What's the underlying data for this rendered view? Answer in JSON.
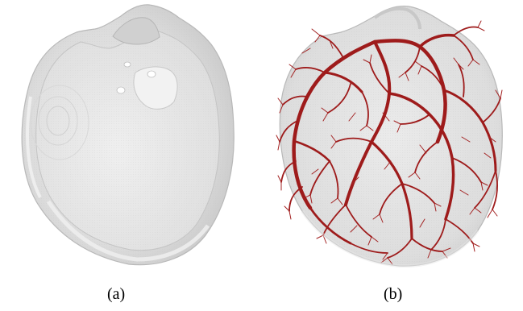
{
  "figure": {
    "panels": [
      {
        "label": "(a)"
      },
      {
        "label": "(b)"
      }
    ]
  },
  "colors": {
    "shell": "#d6d6d6",
    "shell_edge": "#b8b8b8",
    "inner": "#e6e6e6",
    "vessel": "#9e1b1b",
    "vessel_dark": "#6f0f0f"
  }
}
